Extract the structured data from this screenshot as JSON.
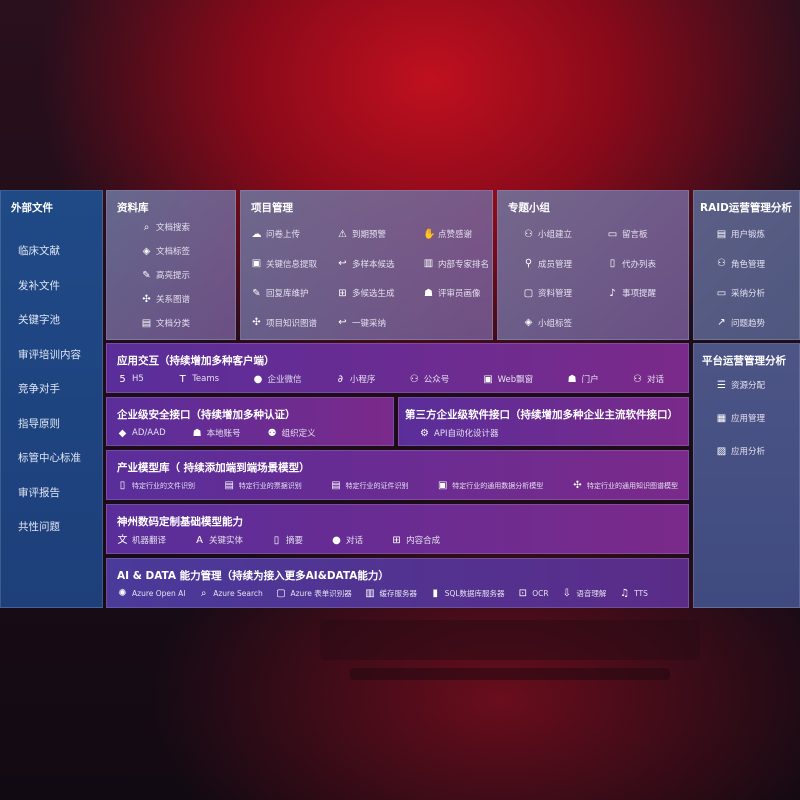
{
  "sidebar": {
    "title": "外部文件",
    "items": [
      "临床文献",
      "发补文件",
      "关键字池",
      "审评培训内容",
      "竞争对手",
      "指导原则",
      "标管中心标准",
      "审评报告",
      "共性问题"
    ]
  },
  "library": {
    "title": "资料库",
    "items": [
      {
        "icon": "doc-search-icon",
        "label": "文档搜索"
      },
      {
        "icon": "tag-icon",
        "label": "文档标签"
      },
      {
        "icon": "pen-icon",
        "label": "高亮提示"
      },
      {
        "icon": "graph-icon",
        "label": "关系图谱"
      },
      {
        "icon": "doc-category-icon",
        "label": "文档分类"
      }
    ]
  },
  "project": {
    "title": "项目管理",
    "items": [
      {
        "icon": "cloud-upload-icon",
        "label": "问卷上传"
      },
      {
        "icon": "alarm-icon",
        "label": "到期预警"
      },
      {
        "icon": "thumbs-up-icon",
        "label": "点赞感谢"
      },
      {
        "icon": "window-icon",
        "label": "关键信息提取"
      },
      {
        "icon": "reply-icon",
        "label": "多样本候选"
      },
      {
        "icon": "ranking-icon",
        "label": "内部专家排名"
      },
      {
        "icon": "edit-icon",
        "label": "回复库维护"
      },
      {
        "icon": "puzzle-icon",
        "label": "多候选生成"
      },
      {
        "icon": "user-icon",
        "label": "评审员画像"
      },
      {
        "icon": "graph-icon",
        "label": "项目知识图谱"
      },
      {
        "icon": "reply-icon",
        "label": "一键采纳"
      }
    ]
  },
  "group": {
    "title": "专题小组",
    "items": [
      {
        "icon": "users-icon",
        "label": "小组建立"
      },
      {
        "icon": "bbs-icon",
        "label": "留言板"
      },
      {
        "icon": "user-add-icon",
        "label": "成员管理"
      },
      {
        "icon": "clipboard-icon",
        "label": "代办列表"
      },
      {
        "icon": "folder-icon",
        "label": "资料管理"
      },
      {
        "icon": "bell-icon",
        "label": "事项提醒"
      },
      {
        "icon": "tag-icon",
        "label": "小组标签"
      }
    ]
  },
  "raid": {
    "title": "RAID运营管理分析",
    "items": [
      {
        "icon": "id-card-icon",
        "label": "用户锻炼"
      },
      {
        "icon": "users-icon",
        "label": "角色管理"
      },
      {
        "icon": "qa-icon",
        "label": "采纳分析"
      },
      {
        "icon": "trend-icon",
        "label": "问题趋势"
      }
    ]
  },
  "platform": {
    "title": "平台运营管理分析",
    "items": [
      {
        "icon": "list-icon",
        "label": "资源分配"
      },
      {
        "icon": "apps-icon",
        "label": "应用管理"
      },
      {
        "icon": "chart-icon",
        "label": "应用分析"
      }
    ]
  },
  "interaction": {
    "title": "应用交互（持续增加多种客户端）",
    "items": [
      {
        "icon": "html5-icon",
        "label": "H5"
      },
      {
        "icon": "teams-icon",
        "label": "Teams"
      },
      {
        "icon": "wechat-icon",
        "label": "企业微信"
      },
      {
        "icon": "miniprogram-icon",
        "label": "小程序"
      },
      {
        "icon": "users-icon",
        "label": "公众号"
      },
      {
        "icon": "window-icon",
        "label": "Web飘窗"
      },
      {
        "icon": "user-icon",
        "label": "门户"
      },
      {
        "icon": "chat-users-icon",
        "label": "对话"
      }
    ]
  },
  "security": {
    "title": "企业级安全接口（持续增加多种认证）",
    "items": [
      {
        "icon": "diamond-icon",
        "label": "AD/AAD"
      },
      {
        "icon": "user-icon",
        "label": "本地账号"
      },
      {
        "icon": "org-icon",
        "label": "组织定义"
      }
    ]
  },
  "thirdparty": {
    "title": "第三方企业级软件接口（持续增加多种企业主流软件接口）",
    "items": [
      {
        "icon": "gear-icon",
        "label": "API自动化设计器"
      }
    ]
  },
  "industry": {
    "title": "产业模型库（ 持续添加端到端场景模型）",
    "items": [
      {
        "icon": "file-icon",
        "label": "特定行业的文件识别"
      },
      {
        "icon": "receipt-icon",
        "label": "特定行业的票据识别"
      },
      {
        "icon": "id-card-icon",
        "label": "特定行业的证件识别"
      },
      {
        "icon": "image-icon",
        "label": "特定行业的通用数据分析模型"
      },
      {
        "icon": "graph-icon",
        "label": "特定行业的通用知识图谱模型"
      }
    ]
  },
  "base": {
    "title": "神州数码定制基础模型能力",
    "items": [
      {
        "icon": "translate-icon",
        "label": "机器翻译"
      },
      {
        "icon": "entity-icon",
        "label": "关键实体"
      },
      {
        "icon": "document-icon",
        "label": "摘要"
      },
      {
        "icon": "chat-icon",
        "label": "对话"
      },
      {
        "icon": "puzzle-icon",
        "label": "内容合成"
      }
    ]
  },
  "aidata": {
    "title": "AI & DATA 能力管理（持续为接入更多AI&DATA能力）",
    "items": [
      {
        "icon": "openai-icon",
        "label": "Azure Open AI"
      },
      {
        "icon": "search-icon",
        "label": "Azure Search"
      },
      {
        "icon": "form-icon",
        "label": "Azure 表单识别器"
      },
      {
        "icon": "cache-icon",
        "label": "缓存服务器"
      },
      {
        "icon": "database-icon",
        "label": "SQL数据库服务器"
      },
      {
        "icon": "ocr-icon",
        "label": "OCR"
      },
      {
        "icon": "speech-icon",
        "label": "语音理解"
      },
      {
        "icon": "tts-icon",
        "label": "TTS"
      }
    ]
  }
}
